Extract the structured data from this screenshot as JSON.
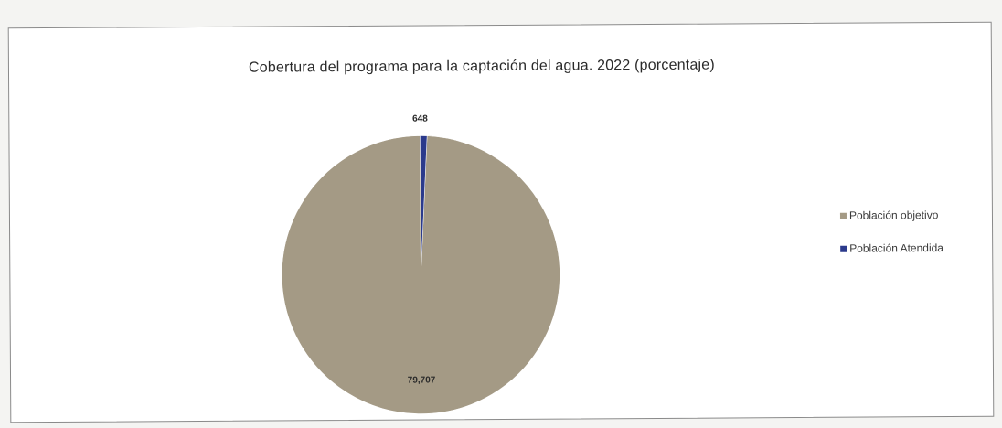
{
  "chart_data": {
    "type": "pie",
    "title": "Cobertura del programa para la captación del agua. 2022 (porcentaje)",
    "slices": [
      {
        "label": "Población objetivo",
        "value": 79707,
        "display": "79,707",
        "color": "#a49a85"
      },
      {
        "label": "Población Atendida",
        "value": 648,
        "display": "648",
        "color": "#2b3a8c"
      }
    ],
    "legend_position": "right",
    "data_labels_shown": true
  }
}
